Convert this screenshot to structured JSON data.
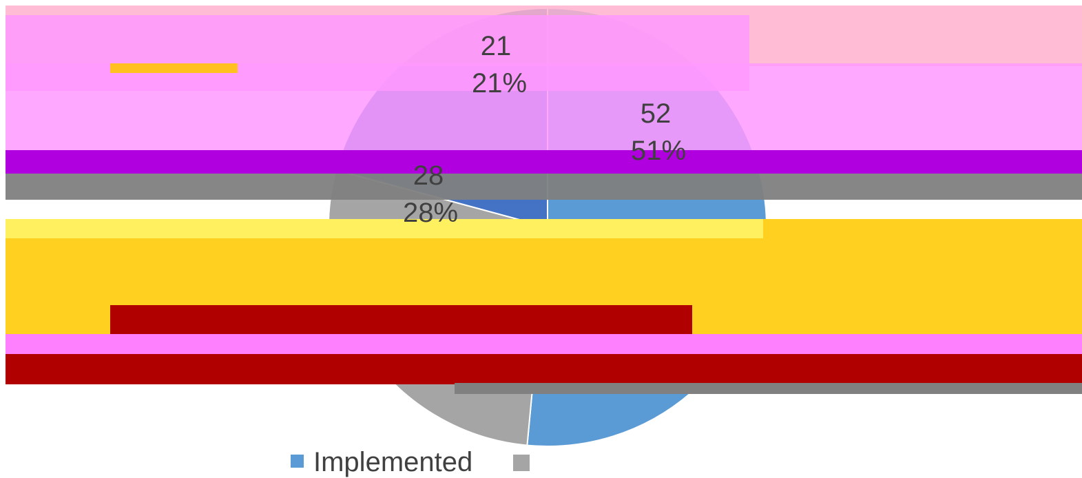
{
  "chart_data": {
    "type": "pie",
    "slices": [
      {
        "label": "Implemented",
        "value": 52,
        "percent": "51%",
        "color": "#5B9BD5"
      },
      {
        "label": "",
        "value": 28,
        "percent": "28%",
        "color": "#A5A5A5"
      },
      {
        "label": "",
        "value": 21,
        "percent": "21%",
        "color": "#4472C4"
      }
    ],
    "legend": {
      "position": "bottom",
      "entries": [
        "Implemented",
        ""
      ]
    }
  },
  "colors": {
    "pink_overlay": "#FF99FF",
    "rose_overlay": "#FFB0CC",
    "purple_band": "#B000E0",
    "gray_band": "#808080",
    "yellow_band": "#FFD020",
    "red_band": "#B00000",
    "magenta_band": "#FF80FF"
  }
}
